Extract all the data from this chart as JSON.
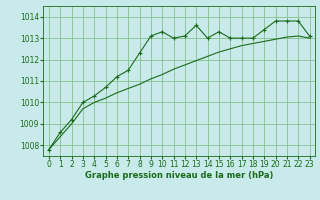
{
  "title": "Graphe pression niveau de la mer (hPa)",
  "background_color": "#c8eaea",
  "grid_color": "#7ab87a",
  "line_color": "#1a6b1a",
  "xlim": [
    -0.5,
    23.5
  ],
  "ylim": [
    1007.5,
    1014.5
  ],
  "yticks": [
    1008,
    1009,
    1010,
    1011,
    1012,
    1013,
    1014
  ],
  "xticks": [
    0,
    1,
    2,
    3,
    4,
    5,
    6,
    7,
    8,
    9,
    10,
    11,
    12,
    13,
    14,
    15,
    16,
    17,
    18,
    19,
    20,
    21,
    22,
    23
  ],
  "series1_x": [
    0,
    1,
    2,
    3,
    4,
    5,
    6,
    7,
    8,
    9,
    10,
    11,
    12,
    13,
    14,
    15,
    16,
    17,
    18,
    19,
    20,
    21,
    22,
    23
  ],
  "series1_y": [
    1007.8,
    1008.6,
    1009.2,
    1010.0,
    1010.3,
    1010.7,
    1011.2,
    1011.5,
    1012.3,
    1013.1,
    1013.3,
    1013.0,
    1013.1,
    1013.6,
    1013.0,
    1013.3,
    1013.0,
    1013.0,
    1013.0,
    1013.4,
    1013.8,
    1013.8,
    1013.8,
    1013.1
  ],
  "series2_x": [
    0,
    1,
    2,
    3,
    4,
    5,
    6,
    7,
    8,
    9,
    10,
    11,
    12,
    13,
    14,
    15,
    16,
    17,
    18,
    19,
    20,
    21,
    22,
    23
  ],
  "series2_y": [
    1007.8,
    1008.4,
    1009.0,
    1009.7,
    1010.0,
    1010.2,
    1010.45,
    1010.65,
    1010.85,
    1011.1,
    1011.3,
    1011.55,
    1011.75,
    1011.95,
    1012.15,
    1012.35,
    1012.5,
    1012.65,
    1012.75,
    1012.85,
    1012.95,
    1013.05,
    1013.1,
    1013.0
  ],
  "title_fontsize": 6.0,
  "tick_fontsize": 5.5
}
